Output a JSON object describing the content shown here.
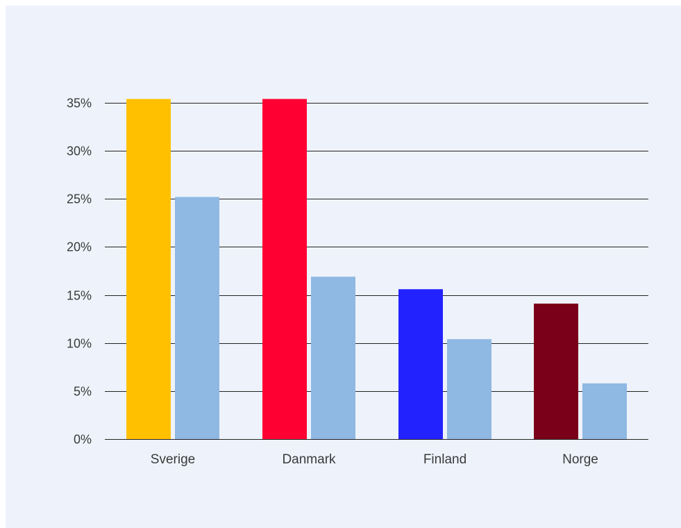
{
  "chart_data": {
    "type": "bar",
    "categories": [
      "Sverige",
      "Danmark",
      "Finland",
      "Norge"
    ],
    "series": [
      {
        "values": [
          35.4,
          35.4,
          15.6,
          14.1
        ],
        "colors": [
          "#ffc000",
          "#ff0033",
          "#2222ff",
          "#7a0019"
        ]
      },
      {
        "values": [
          25.2,
          16.9,
          10.4,
          5.8
        ],
        "colors": [
          "#8fb8e3",
          "#8fb8e3",
          "#8fb8e3",
          "#8fb8e3"
        ]
      }
    ],
    "ylim": [
      0,
      35
    ],
    "yticks": [
      0,
      5,
      10,
      15,
      20,
      25,
      30,
      35
    ],
    "ytick_labels": [
      "0%",
      "5%",
      "10%",
      "15%",
      "20%",
      "25%",
      "30%",
      "35%"
    ],
    "grid": true,
    "gridline_color": "#222222",
    "background_color": "#eef3fb",
    "xlabel": "",
    "ylabel": "",
    "title": ""
  }
}
